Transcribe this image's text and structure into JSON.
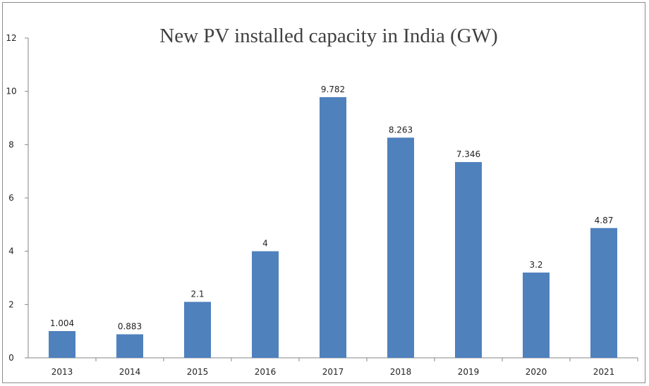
{
  "chart_data": {
    "type": "bar",
    "title": "New PV installed capacity in India (GW)",
    "categories": [
      "2013",
      "2014",
      "2015",
      "2016",
      "2017",
      "2018",
      "2019",
      "2020",
      "2021"
    ],
    "values": [
      1.004,
      0.883,
      2.1,
      4,
      9.782,
      8.263,
      7.346,
      3.2,
      4.87
    ],
    "value_labels": [
      "1.004",
      "0.883",
      "2.1",
      "4",
      "9.782",
      "8.263",
      "7.346",
      "3.2",
      "4.87"
    ],
    "xlabel": "",
    "ylabel": "",
    "ylim": [
      0,
      12
    ],
    "yticks": [
      "0",
      "2",
      "4",
      "6",
      "8",
      "10",
      "12"
    ],
    "grid": false,
    "legend": "none",
    "bar_color": "#4f81bd"
  }
}
